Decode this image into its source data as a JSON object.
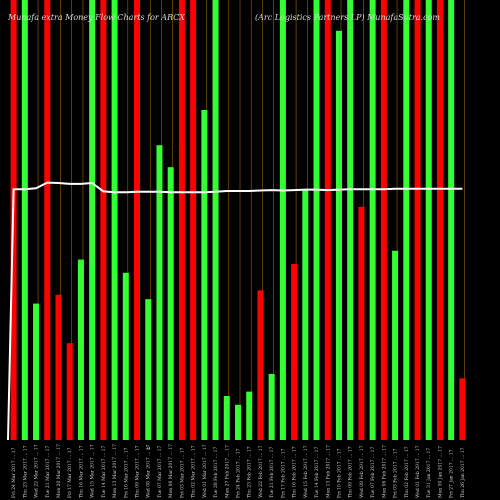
{
  "chart_data": {
    "type": "bar",
    "title_left": "Munafa extra  Money Flow  Charts for ARCX",
    "title_right": "(Arc Logistics Partners LP) MunafaSutra.com",
    "x_marker": "0",
    "categories": [
      "Fri 24 Mar 2017 ... 17",
      "Thu 23 Mar 2017 ... 17",
      "Wed 22 Mar 2017 ... 17",
      "Tue 21 Mar 2017 ... 17",
      "Mon 20 Mar 2017 ... 17",
      "Fri 17 Mar 2017 ... 17",
      "Thu 16 Mar 2017 ... 17",
      "Wed 15 Mar 2017 ... 17",
      "Tue 14 Mar 2017 ... 17",
      "Mon 13 Mar 2017 ... 17",
      "Fri 10 Mar 2017 ... 17",
      "Thu 09 Mar 2017 ... 17",
      "Wed 08 Mar 2017 ... 17",
      "Tue 07 Mar 2017 ... 17",
      "Mon 06 Mar 2017 ... 17",
      "Fri 03 Mar 2017 ... 17",
      "Thu 02 Mar 2017 ... 17",
      "Wed 01 Mar 2017 ... 17",
      "Tue 28 Feb 2017 ... 17",
      "Mon 27 Feb 2017 ... 17",
      "Fri 24 Feb 2017 ... 17",
      "Thu 23 Feb 2017 ... 17",
      "Wed 22 Feb 2017 ... 17",
      "Tue 21 Feb 2017 ... 17",
      "Fri 17 Feb 2017 ... 17",
      "Thu 16 Feb 2017 ... 17",
      "Wed 15 Feb 2017 ... 17",
      "Tue 14 Feb 2017 ... 17",
      "Mon 13 Feb 2017 ... 17",
      "Fri 10 Feb 2017 ... 17",
      "Thu 09 Feb 2017 ... 17",
      "Wed 08 Feb 2017 ... 17",
      "Tue 07 Feb 2017 ... 17",
      "Mon 06 Feb 2017 ... 17",
      "Fri 03 Feb 2017 ... 17",
      "Thu 02 Feb 2017 ... 17",
      "Wed 01 Feb 2017 ... 17",
      "Tue 31 Jan 2017 ... 17",
      "Mon 30 Jan 2017 ... 17",
      "Fri 27 Jan 2017 ... 17",
      "Thu 26 Jan 2017 ... 17"
    ],
    "bar_colors": [
      "red",
      "green",
      "green",
      "red",
      "red",
      "red",
      "green",
      "green",
      "red",
      "green",
      "green",
      "red",
      "green",
      "green",
      "green",
      "red",
      "red",
      "green",
      "green",
      "green",
      "green",
      "green",
      "red",
      "green",
      "green",
      "red",
      "green",
      "green",
      "red",
      "green",
      "green",
      "red",
      "green",
      "red",
      "green",
      "green",
      "red",
      "green",
      "red",
      "green",
      "red"
    ],
    "values": [
      100,
      100,
      31,
      100,
      33,
      22,
      41,
      100,
      100,
      100,
      38,
      100,
      32,
      67,
      62,
      100,
      100,
      75,
      100,
      10,
      8,
      11,
      34,
      15,
      100,
      40,
      57,
      100,
      100,
      93,
      100,
      53,
      100,
      100,
      43,
      100,
      100,
      100,
      100,
      100,
      14
    ],
    "line_values": [
      57,
      57,
      57.2,
      58.5,
      58.4,
      58.2,
      58.2,
      58.4,
      56.5,
      56.3,
      56.3,
      56.4,
      56.4,
      56.4,
      56.3,
      56.3,
      56.3,
      56.3,
      56.4,
      56.6,
      56.6,
      56.6,
      56.7,
      56.8,
      56.7,
      56.8,
      56.9,
      56.9,
      56.8,
      56.9,
      57.0,
      57.0,
      57.0,
      57.0,
      57.1,
      57.1,
      57.1,
      57.1,
      57.1,
      57.1,
      57.1
    ],
    "line_start": 0,
    "ylim": [
      0,
      100
    ],
    "grid": true,
    "colors": {
      "background": "#000000",
      "up": "#33ff33",
      "down": "#ff0000",
      "grid": "#a0620a",
      "line": "#ffffff"
    }
  }
}
